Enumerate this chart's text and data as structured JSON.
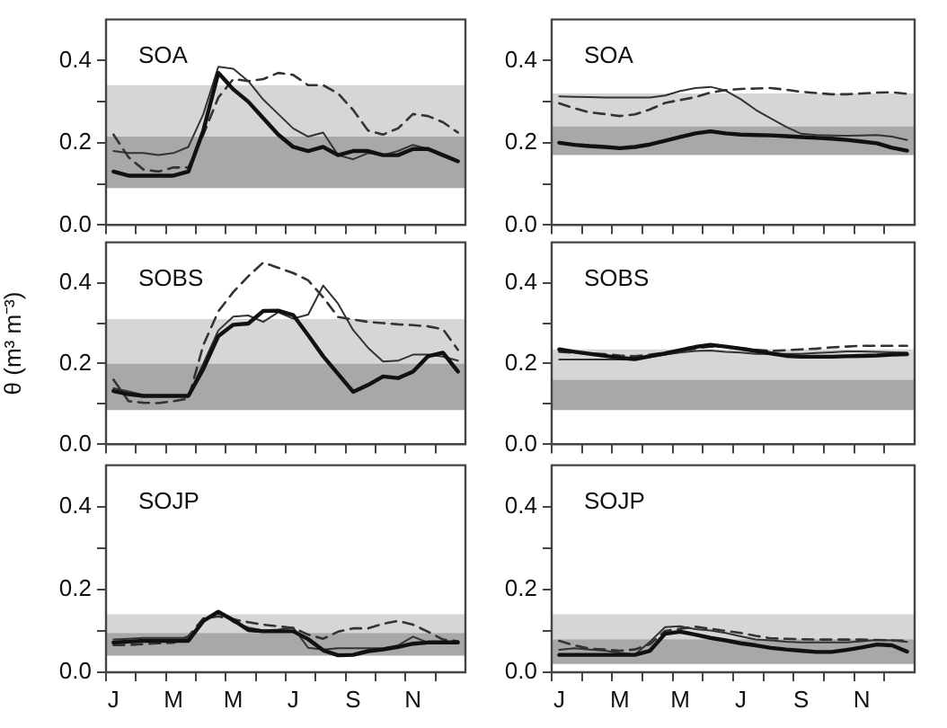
{
  "chart_data": [
    {
      "type": "line",
      "annotations": [
        "SOA"
      ],
      "categories": [
        null,
        null,
        null,
        null,
        null,
        null,
        null,
        null,
        null,
        null,
        null,
        null,
        null,
        null,
        null,
        null,
        null,
        null,
        null,
        null,
        null,
        null,
        null,
        null
      ],
      "ylim": [
        0,
        0.5
      ],
      "yticks": [
        {
          "value": 0,
          "label": "0.0"
        },
        {
          "value": 0.1,
          "label": null
        },
        {
          "value": 0.2,
          "label": "0.2"
        },
        {
          "value": 0.3,
          "label": null
        },
        {
          "value": 0.4,
          "label": "0.4"
        }
      ],
      "tick_labels": "y",
      "legend": false,
      "grid": false,
      "marker": "none",
      "bands": [
        {
          "axis": "y",
          "from": 0.215,
          "to": 0.34,
          "color": "#d6d6d6"
        },
        {
          "axis": "y",
          "from": 0.09,
          "to": 0.215,
          "color": "#a8a8a8"
        }
      ],
      "series": [
        {
          "color": "#111111",
          "line_style": "solid",
          "values": [
            0.13,
            0.12,
            0.12,
            0.12,
            0.12,
            0.13,
            0.23,
            0.37,
            0.33,
            0.3,
            0.26,
            0.22,
            0.19,
            0.18,
            0.19,
            0.17,
            0.18,
            0.18,
            0.17,
            0.17,
            0.185,
            0.185,
            0.17,
            0.155
          ]
        },
        {
          "color": "#333333",
          "line_style": "solid",
          "values": [
            0.18,
            0.175,
            0.175,
            0.17,
            0.175,
            0.19,
            0.27,
            0.385,
            0.38,
            0.35,
            0.305,
            0.27,
            0.235,
            0.215,
            0.225,
            0.17,
            0.16,
            0.175,
            0.17,
            0.18,
            0.195,
            0.185,
            0.17,
            0.155
          ]
        },
        {
          "color": "#333333",
          "line_style": "dashed",
          "values": [
            0.22,
            0.165,
            0.135,
            0.13,
            0.14,
            0.14,
            0.22,
            0.31,
            0.355,
            0.35,
            0.355,
            0.37,
            0.365,
            0.34,
            0.34,
            0.32,
            0.28,
            0.23,
            0.22,
            0.235,
            0.27,
            0.265,
            0.25,
            0.225
          ]
        }
      ]
    },
    {
      "type": "line",
      "annotations": [
        "SOA"
      ],
      "categories": [
        null,
        null,
        null,
        null,
        null,
        null,
        null,
        null,
        null,
        null,
        null,
        null,
        null,
        null,
        null,
        null,
        null,
        null,
        null,
        null,
        null,
        null,
        null,
        null
      ],
      "ylim": [
        0,
        0.5
      ],
      "yticks": [
        {
          "value": 0,
          "label": "0.0"
        },
        {
          "value": 0.1,
          "label": null
        },
        {
          "value": 0.2,
          "label": "0.2"
        },
        {
          "value": 0.3,
          "label": null
        },
        {
          "value": 0.4,
          "label": "0.4"
        }
      ],
      "tick_labels": "y",
      "legend": false,
      "grid": false,
      "marker": "none",
      "bands": [
        {
          "axis": "y",
          "from": 0.24,
          "to": 0.32,
          "color": "#d6d6d6"
        },
        {
          "axis": "y",
          "from": 0.17,
          "to": 0.24,
          "color": "#a8a8a8"
        }
      ],
      "series": [
        {
          "color": "#111111",
          "line_style": "solid",
          "values": [
            0.2,
            0.195,
            0.192,
            0.19,
            0.187,
            0.19,
            0.196,
            0.205,
            0.214,
            0.223,
            0.228,
            0.223,
            0.22,
            0.219,
            0.218,
            0.216,
            0.214,
            0.212,
            0.21,
            0.207,
            0.203,
            0.199,
            0.188,
            0.181
          ]
        },
        {
          "color": "#333333",
          "line_style": "solid",
          "values": [
            0.313,
            0.312,
            0.311,
            0.31,
            0.31,
            0.31,
            0.31,
            0.315,
            0.326,
            0.333,
            0.336,
            0.327,
            0.306,
            0.28,
            0.259,
            0.239,
            0.222,
            0.219,
            0.218,
            0.217,
            0.218,
            0.219,
            0.215,
            0.207
          ]
        },
        {
          "color": "#333333",
          "line_style": "dashed",
          "values": [
            0.296,
            0.284,
            0.274,
            0.27,
            0.265,
            0.269,
            0.281,
            0.297,
            0.304,
            0.311,
            0.322,
            0.328,
            0.331,
            0.332,
            0.333,
            0.329,
            0.324,
            0.321,
            0.318,
            0.318,
            0.32,
            0.322,
            0.323,
            0.319
          ]
        }
      ]
    },
    {
      "type": "line",
      "annotations": [
        "SOBS"
      ],
      "ylabel": "θ (m³ m⁻³)",
      "categories": [
        null,
        null,
        null,
        null,
        null,
        null,
        null,
        null,
        null,
        null,
        null,
        null,
        null,
        null,
        null,
        null,
        null,
        null,
        null,
        null,
        null,
        null,
        null,
        null
      ],
      "ylim": [
        0,
        0.5
      ],
      "yticks": [
        {
          "value": 0,
          "label": "0.0"
        },
        {
          "value": 0.1,
          "label": null
        },
        {
          "value": 0.2,
          "label": "0.2"
        },
        {
          "value": 0.3,
          "label": null
        },
        {
          "value": 0.4,
          "label": "0.4"
        }
      ],
      "tick_labels": "y",
      "legend": false,
      "grid": false,
      "marker": "none",
      "bands": [
        {
          "axis": "y",
          "from": 0.2,
          "to": 0.31,
          "color": "#d6d6d6"
        },
        {
          "axis": "y",
          "from": 0.085,
          "to": 0.2,
          "color": "#a8a8a8"
        }
      ],
      "series": [
        {
          "color": "#111111",
          "line_style": "solid",
          "values": [
            0.132,
            0.124,
            0.12,
            0.12,
            0.12,
            0.12,
            0.187,
            0.268,
            0.296,
            0.299,
            0.33,
            0.331,
            0.32,
            0.27,
            0.218,
            0.174,
            0.13,
            0.147,
            0.168,
            0.164,
            0.18,
            0.218,
            0.227,
            0.18
          ]
        },
        {
          "color": "#333333",
          "line_style": "solid",
          "values": [
            0.139,
            0.131,
            0.122,
            0.12,
            0.12,
            0.12,
            0.2,
            0.282,
            0.316,
            0.319,
            0.303,
            0.327,
            0.311,
            0.321,
            0.393,
            0.348,
            0.283,
            0.239,
            0.205,
            0.207,
            0.222,
            0.222,
            0.217,
            0.207
          ]
        },
        {
          "color": "#333333",
          "line_style": "dashed",
          "values": [
            0.16,
            0.107,
            0.103,
            0.102,
            0.107,
            0.113,
            0.246,
            0.329,
            0.377,
            0.416,
            0.45,
            0.437,
            0.424,
            0.406,
            0.364,
            0.315,
            0.309,
            0.303,
            0.3,
            0.297,
            0.295,
            0.292,
            0.285,
            0.234
          ]
        }
      ]
    },
    {
      "type": "line",
      "annotations": [
        "SOBS"
      ],
      "categories": [
        null,
        null,
        null,
        null,
        null,
        null,
        null,
        null,
        null,
        null,
        null,
        null,
        null,
        null,
        null,
        null,
        null,
        null,
        null,
        null,
        null,
        null,
        null,
        null
      ],
      "ylim": [
        0,
        0.5
      ],
      "yticks": [
        {
          "value": 0,
          "label": "0.0"
        },
        {
          "value": 0.1,
          "label": null
        },
        {
          "value": 0.2,
          "label": "0.2"
        },
        {
          "value": 0.3,
          "label": null
        },
        {
          "value": 0.4,
          "label": "0.4"
        }
      ],
      "tick_labels": "y",
      "legend": false,
      "grid": false,
      "marker": "none",
      "bands": [
        {
          "axis": "y",
          "from": 0.16,
          "to": 0.235,
          "color": "#d6d6d6"
        },
        {
          "axis": "y",
          "from": 0.085,
          "to": 0.16,
          "color": "#a8a8a8"
        }
      ],
      "series": [
        {
          "color": "#111111",
          "line_style": "solid",
          "values": [
            0.235,
            0.229,
            0.224,
            0.219,
            0.214,
            0.211,
            0.218,
            0.225,
            0.233,
            0.241,
            0.246,
            0.242,
            0.237,
            0.231,
            0.225,
            0.219,
            0.217,
            0.217,
            0.217,
            0.218,
            0.219,
            0.22,
            0.222,
            0.223
          ]
        },
        {
          "color": "#333333",
          "line_style": "solid",
          "values": [
            0.21,
            0.21,
            0.21,
            0.21,
            0.21,
            0.211,
            0.216,
            0.222,
            0.227,
            0.231,
            0.232,
            0.229,
            0.227,
            0.224,
            0.224,
            0.224,
            0.224,
            0.226,
            0.228,
            0.23,
            0.23,
            0.229,
            0.228,
            0.227
          ]
        },
        {
          "color": "#333333",
          "line_style": "dashed",
          "values": [
            0.229,
            0.227,
            0.225,
            0.223,
            0.22,
            0.218,
            0.222,
            0.227,
            0.232,
            0.237,
            0.242,
            0.242,
            0.238,
            0.234,
            0.231,
            0.233,
            0.235,
            0.237,
            0.24,
            0.242,
            0.244,
            0.244,
            0.244,
            0.244
          ]
        }
      ]
    },
    {
      "type": "line",
      "annotations": [
        "SOJP"
      ],
      "categories": [
        "J",
        null,
        null,
        null,
        "M",
        null,
        null,
        null,
        "M",
        null,
        null,
        null,
        "J",
        null,
        null,
        null,
        "S",
        null,
        null,
        null,
        "N",
        null,
        null,
        null
      ],
      "ylim": [
        0,
        0.5
      ],
      "yticks": [
        {
          "value": 0,
          "label": "0.0"
        },
        {
          "value": 0.1,
          "label": null
        },
        {
          "value": 0.2,
          "label": "0.2"
        },
        {
          "value": 0.3,
          "label": null
        },
        {
          "value": 0.4,
          "label": "0.4"
        }
      ],
      "legend": false,
      "grid": false,
      "marker": "none",
      "bands": [
        {
          "axis": "y",
          "from": 0.095,
          "to": 0.14,
          "color": "#d6d6d6"
        },
        {
          "axis": "y",
          "from": 0.04,
          "to": 0.095,
          "color": "#a8a8a8"
        }
      ],
      "series": [
        {
          "color": "#111111",
          "line_style": "solid",
          "values": [
            0.072,
            0.074,
            0.076,
            0.076,
            0.076,
            0.076,
            0.124,
            0.146,
            0.126,
            0.102,
            0.099,
            0.099,
            0.099,
            0.08,
            0.053,
            0.041,
            0.042,
            0.051,
            0.055,
            0.061,
            0.069,
            0.072,
            0.072,
            0.072
          ]
        },
        {
          "color": "#333333",
          "line_style": "solid",
          "values": [
            0.079,
            0.081,
            0.083,
            0.083,
            0.083,
            0.083,
            0.125,
            0.148,
            0.121,
            0.108,
            0.101,
            0.103,
            0.108,
            0.059,
            0.055,
            0.058,
            0.058,
            0.058,
            0.058,
            0.065,
            0.086,
            0.072,
            0.072,
            0.072
          ]
        },
        {
          "color": "#333333",
          "line_style": "dashed",
          "values": [
            0.066,
            0.066,
            0.068,
            0.07,
            0.071,
            0.087,
            0.13,
            0.135,
            0.128,
            0.121,
            0.115,
            0.111,
            0.107,
            0.091,
            0.081,
            0.098,
            0.106,
            0.106,
            0.117,
            0.124,
            0.115,
            0.098,
            0.079,
            0.075
          ]
        }
      ]
    },
    {
      "type": "line",
      "annotations": [
        "SOJP"
      ],
      "categories": [
        "J",
        null,
        null,
        null,
        "M",
        null,
        null,
        null,
        "M",
        null,
        null,
        null,
        "J",
        null,
        null,
        null,
        "S",
        null,
        null,
        null,
        "N",
        null,
        null,
        null
      ],
      "ylim": [
        0,
        0.5
      ],
      "yticks": [
        {
          "value": 0,
          "label": "0.0"
        },
        {
          "value": 0.1,
          "label": null
        },
        {
          "value": 0.2,
          "label": "0.2"
        },
        {
          "value": 0.3,
          "label": null
        },
        {
          "value": 0.4,
          "label": "0.4"
        }
      ],
      "legend": false,
      "grid": false,
      "marker": "none",
      "bands": [
        {
          "axis": "y",
          "from": 0.08,
          "to": 0.14,
          "color": "#d6d6d6"
        },
        {
          "axis": "y",
          "from": 0.02,
          "to": 0.08,
          "color": "#a8a8a8"
        }
      ],
      "series": [
        {
          "color": "#111111",
          "line_style": "solid",
          "values": [
            0.042,
            0.042,
            0.042,
            0.042,
            0.042,
            0.042,
            0.052,
            0.093,
            0.098,
            0.091,
            0.083,
            0.077,
            0.07,
            0.065,
            0.059,
            0.055,
            0.052,
            0.049,
            0.049,
            0.054,
            0.06,
            0.067,
            0.065,
            0.05
          ]
        },
        {
          "color": "#333333",
          "line_style": "solid",
          "values": [
            0.054,
            0.058,
            0.055,
            0.052,
            0.047,
            0.043,
            0.074,
            0.109,
            0.111,
            0.104,
            0.101,
            0.095,
            0.087,
            0.079,
            0.077,
            0.074,
            0.072,
            0.072,
            0.072,
            0.072,
            0.075,
            0.078,
            0.077,
            0.073
          ]
        },
        {
          "color": "#333333",
          "line_style": "dashed",
          "values": [
            0.076,
            0.065,
            0.057,
            0.055,
            0.052,
            0.055,
            0.068,
            0.1,
            0.105,
            0.11,
            0.105,
            0.1,
            0.095,
            0.088,
            0.082,
            0.081,
            0.08,
            0.079,
            0.079,
            0.079,
            0.079,
            0.078,
            0.077,
            0.076
          ]
        }
      ]
    }
  ]
}
